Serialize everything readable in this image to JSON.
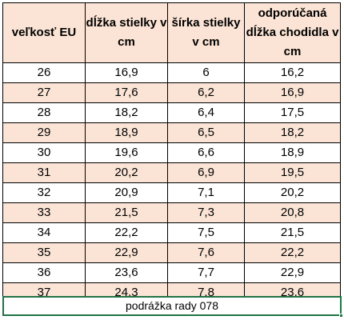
{
  "table": {
    "headers": [
      "veľkosť EU",
      "dĺžka stielky v cm",
      "šírka stielky v cm",
      "odporúčaná dĺžka chodidla v cm"
    ],
    "rows": [
      [
        "26",
        "16,9",
        "6",
        "16,2"
      ],
      [
        "27",
        "17,6",
        "6,2",
        "16,9"
      ],
      [
        "28",
        "18,2",
        "6,4",
        "17,5"
      ],
      [
        "29",
        "18,9",
        "6,5",
        "18,2"
      ],
      [
        "30",
        "19,6",
        "6,6",
        "18,9"
      ],
      [
        "31",
        "20,2",
        "6,9",
        "19,5"
      ],
      [
        "32",
        "20,9",
        "7,1",
        "20,2"
      ],
      [
        "33",
        "21,5",
        "7,3",
        "20,8"
      ],
      [
        "34",
        "22,2",
        "7,5",
        "21,5"
      ],
      [
        "35",
        "22,9",
        "7,6",
        "22,2"
      ],
      [
        "36",
        "23,6",
        "7,7",
        "22,9"
      ],
      [
        "37",
        "24,3",
        "7,8",
        "23,6"
      ]
    ]
  },
  "footer": {
    "text": "podrážka rady 078"
  },
  "colors": {
    "header_fill": "#fbe4d5",
    "odd_row_fill": "#fbe4d5",
    "even_row_fill": "#ffffff",
    "border": "#000000",
    "selection": "#217346"
  }
}
